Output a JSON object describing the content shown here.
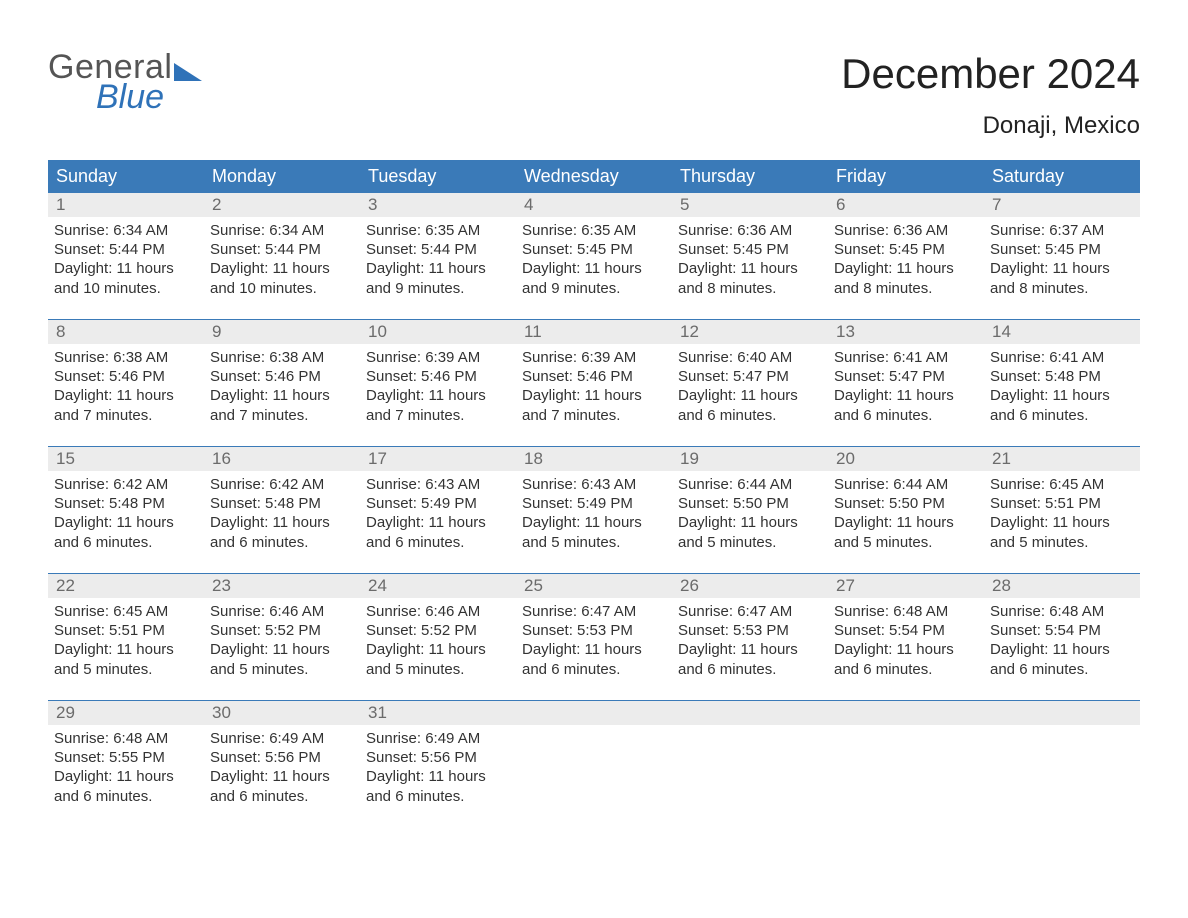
{
  "logo": {
    "word1": "General",
    "word2": "Blue"
  },
  "title": "December 2024",
  "location": "Donaji, Mexico",
  "colors": {
    "header_bg": "#3a7ab8",
    "header_text": "#ffffff",
    "daynum_bg": "#ececec",
    "daynum_text": "#6b6b6b",
    "row_border": "#3a7ab8",
    "logo_accent": "#2f72b8",
    "logo_text": "#555555",
    "body_text": "#333333",
    "page_bg": "#ffffff"
  },
  "weekdays": [
    "Sunday",
    "Monday",
    "Tuesday",
    "Wednesday",
    "Thursday",
    "Friday",
    "Saturday"
  ],
  "weeks": [
    [
      {
        "n": "1",
        "sunrise": "6:34 AM",
        "sunset": "5:44 PM",
        "daylight": "11 hours and 10 minutes."
      },
      {
        "n": "2",
        "sunrise": "6:34 AM",
        "sunset": "5:44 PM",
        "daylight": "11 hours and 10 minutes."
      },
      {
        "n": "3",
        "sunrise": "6:35 AM",
        "sunset": "5:44 PM",
        "daylight": "11 hours and 9 minutes."
      },
      {
        "n": "4",
        "sunrise": "6:35 AM",
        "sunset": "5:45 PM",
        "daylight": "11 hours and 9 minutes."
      },
      {
        "n": "5",
        "sunrise": "6:36 AM",
        "sunset": "5:45 PM",
        "daylight": "11 hours and 8 minutes."
      },
      {
        "n": "6",
        "sunrise": "6:36 AM",
        "sunset": "5:45 PM",
        "daylight": "11 hours and 8 minutes."
      },
      {
        "n": "7",
        "sunrise": "6:37 AM",
        "sunset": "5:45 PM",
        "daylight": "11 hours and 8 minutes."
      }
    ],
    [
      {
        "n": "8",
        "sunrise": "6:38 AM",
        "sunset": "5:46 PM",
        "daylight": "11 hours and 7 minutes."
      },
      {
        "n": "9",
        "sunrise": "6:38 AM",
        "sunset": "5:46 PM",
        "daylight": "11 hours and 7 minutes."
      },
      {
        "n": "10",
        "sunrise": "6:39 AM",
        "sunset": "5:46 PM",
        "daylight": "11 hours and 7 minutes."
      },
      {
        "n": "11",
        "sunrise": "6:39 AM",
        "sunset": "5:46 PM",
        "daylight": "11 hours and 7 minutes."
      },
      {
        "n": "12",
        "sunrise": "6:40 AM",
        "sunset": "5:47 PM",
        "daylight": "11 hours and 6 minutes."
      },
      {
        "n": "13",
        "sunrise": "6:41 AM",
        "sunset": "5:47 PM",
        "daylight": "11 hours and 6 minutes."
      },
      {
        "n": "14",
        "sunrise": "6:41 AM",
        "sunset": "5:48 PM",
        "daylight": "11 hours and 6 minutes."
      }
    ],
    [
      {
        "n": "15",
        "sunrise": "6:42 AM",
        "sunset": "5:48 PM",
        "daylight": "11 hours and 6 minutes."
      },
      {
        "n": "16",
        "sunrise": "6:42 AM",
        "sunset": "5:48 PM",
        "daylight": "11 hours and 6 minutes."
      },
      {
        "n": "17",
        "sunrise": "6:43 AM",
        "sunset": "5:49 PM",
        "daylight": "11 hours and 6 minutes."
      },
      {
        "n": "18",
        "sunrise": "6:43 AM",
        "sunset": "5:49 PM",
        "daylight": "11 hours and 5 minutes."
      },
      {
        "n": "19",
        "sunrise": "6:44 AM",
        "sunset": "5:50 PM",
        "daylight": "11 hours and 5 minutes."
      },
      {
        "n": "20",
        "sunrise": "6:44 AM",
        "sunset": "5:50 PM",
        "daylight": "11 hours and 5 minutes."
      },
      {
        "n": "21",
        "sunrise": "6:45 AM",
        "sunset": "5:51 PM",
        "daylight": "11 hours and 5 minutes."
      }
    ],
    [
      {
        "n": "22",
        "sunrise": "6:45 AM",
        "sunset": "5:51 PM",
        "daylight": "11 hours and 5 minutes."
      },
      {
        "n": "23",
        "sunrise": "6:46 AM",
        "sunset": "5:52 PM",
        "daylight": "11 hours and 5 minutes."
      },
      {
        "n": "24",
        "sunrise": "6:46 AM",
        "sunset": "5:52 PM",
        "daylight": "11 hours and 5 minutes."
      },
      {
        "n": "25",
        "sunrise": "6:47 AM",
        "sunset": "5:53 PM",
        "daylight": "11 hours and 6 minutes."
      },
      {
        "n": "26",
        "sunrise": "6:47 AM",
        "sunset": "5:53 PM",
        "daylight": "11 hours and 6 minutes."
      },
      {
        "n": "27",
        "sunrise": "6:48 AM",
        "sunset": "5:54 PM",
        "daylight": "11 hours and 6 minutes."
      },
      {
        "n": "28",
        "sunrise": "6:48 AM",
        "sunset": "5:54 PM",
        "daylight": "11 hours and 6 minutes."
      }
    ],
    [
      {
        "n": "29",
        "sunrise": "6:48 AM",
        "sunset": "5:55 PM",
        "daylight": "11 hours and 6 minutes."
      },
      {
        "n": "30",
        "sunrise": "6:49 AM",
        "sunset": "5:56 PM",
        "daylight": "11 hours and 6 minutes."
      },
      {
        "n": "31",
        "sunrise": "6:49 AM",
        "sunset": "5:56 PM",
        "daylight": "11 hours and 6 minutes."
      },
      {
        "empty": true
      },
      {
        "empty": true
      },
      {
        "empty": true
      },
      {
        "empty": true
      }
    ]
  ],
  "labels": {
    "sunrise": "Sunrise:",
    "sunset": "Sunset:",
    "daylight": "Daylight:"
  }
}
